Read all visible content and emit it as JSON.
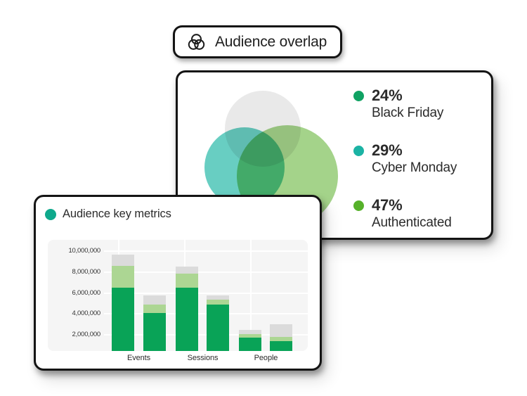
{
  "badge": {
    "label": "Audience overlap",
    "icon": "venn-diagram-icon"
  },
  "overlap_card": {
    "legend": [
      {
        "value": "24%",
        "label": "Black Friday",
        "dot_color": "#10A263"
      },
      {
        "value": "29%",
        "label": "Cyber Monday",
        "dot_color": "#1BB3A4"
      },
      {
        "value": "47%",
        "label": "Authenticated",
        "dot_color": "#56B12A"
      }
    ],
    "venn_colors": {
      "top": "#E9E9E9",
      "bottom_left": "#68CEC2",
      "bottom_right": "#A4D38A"
    }
  },
  "metrics_card": {
    "title": "Audience key metrics",
    "title_dot_color": "#0FA98C"
  },
  "chart_data": [
    {
      "type": "venn",
      "title": "Audience overlap",
      "sets": [
        {
          "label": "Black Friday",
          "value_pct": 24,
          "dot_color": "#10A263",
          "circle_color": "#E9E9E9",
          "circle_position": "top"
        },
        {
          "label": "Cyber Monday",
          "value_pct": 29,
          "dot_color": "#1BB3A4",
          "circle_color": "#68CEC2",
          "circle_position": "bottom-left"
        },
        {
          "label": "Authenticated",
          "value_pct": 47,
          "dot_color": "#56B12A",
          "circle_color": "#A4D38A",
          "circle_position": "bottom-right"
        }
      ]
    },
    {
      "type": "bar",
      "stacked": true,
      "title": "Audience key metrics",
      "categories": [
        "Events",
        "Sessions",
        "People"
      ],
      "bars_per_category": 2,
      "series": [
        {
          "name": "green",
          "color": "#09A357",
          "values": [
            6500000,
            4100000,
            6500000,
            4900000,
            1750000,
            1400000
          ]
        },
        {
          "name": "light-green",
          "color": "#ACD693",
          "values": [
            2100000,
            800000,
            1350000,
            450000,
            350000,
            450000
          ]
        },
        {
          "name": "gray",
          "color": "#DBDBDB",
          "values": [
            1100000,
            850000,
            700000,
            450000,
            400000,
            1200000
          ]
        }
      ],
      "bar_totals": [
        9700000,
        5750000,
        8550000,
        5800000,
        2500000,
        3050000
      ],
      "yticks": [
        {
          "value": 2000000,
          "label": "2,000,000"
        },
        {
          "value": 4000000,
          "label": "4,000,000"
        },
        {
          "value": 6000000,
          "label": "6,000,000"
        },
        {
          "value": 8000000,
          "label": "8,000,000"
        },
        {
          "value": 10000000,
          "label": "10,000,000"
        }
      ],
      "ylim": [
        0,
        11000000
      ],
      "grid": true,
      "panel_bg": "#F5F5F5",
      "grid_color": "#FFFFFF",
      "xlabel": "",
      "ylabel": ""
    }
  ]
}
